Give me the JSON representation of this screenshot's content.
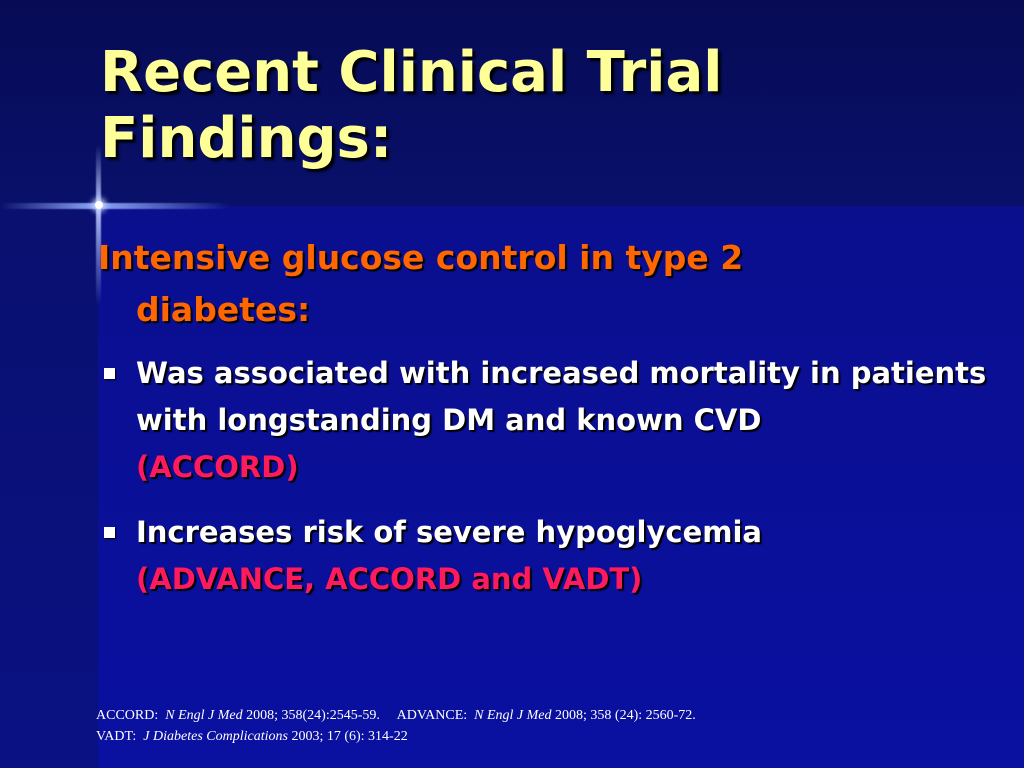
{
  "slide": {
    "title_line1": "Recent Clinical Trial",
    "title_line2": "Findings:",
    "subheading": "Intensive glucose control in type 2 diabetes:",
    "bullets": [
      {
        "text": "Was associated with increased mortality in patients with longstanding DM and known CVD",
        "ref": "(ACCORD)"
      },
      {
        "text": "Increases risk of severe hypoglycemia",
        "ref": "(ADVANCE, ACCORD and VADT)"
      }
    ]
  },
  "references": {
    "accord_label": "ACCORD:",
    "accord_journal": "N Engl J Med",
    "accord_citation": "2008; 358(24):2545-59.",
    "advance_label": "ADVANCE:",
    "advance_journal": "N Engl J Med",
    "advance_citation": "2008; 358 (24): 2560-72.",
    "vadt_label": "VADT:",
    "vadt_journal": "J Diabetes Complications",
    "vadt_citation": "2003; 17 (6): 314-22"
  },
  "colors": {
    "background": "#0a0f93",
    "title": "#ffff99",
    "subheading": "#ff6600",
    "body_text": "#ffffff",
    "trial_ref": "#ff1a5e"
  }
}
